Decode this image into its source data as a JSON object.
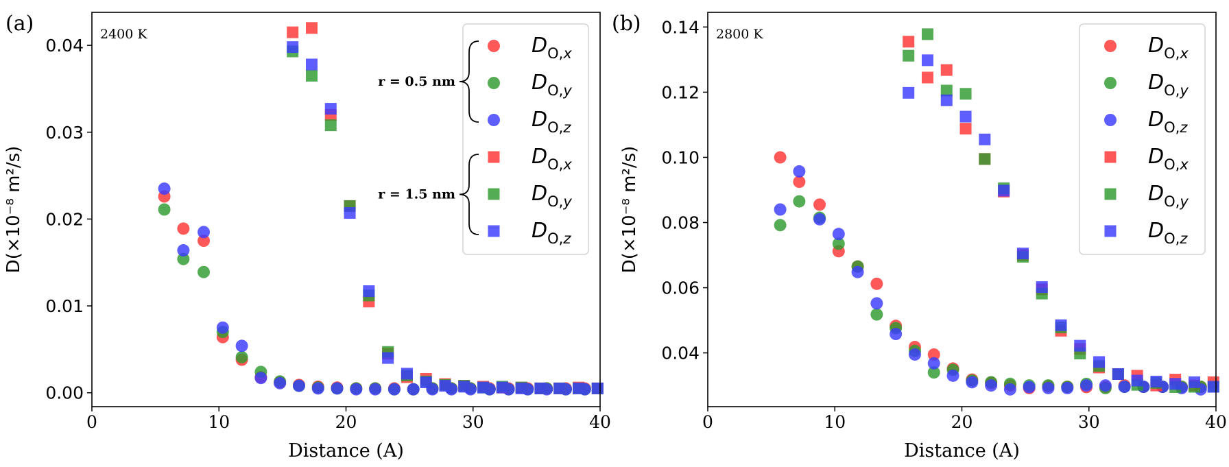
{
  "colors": {
    "x": "#ff3333",
    "y": "#2e9a2e",
    "z": "#3a3aff",
    "alpha": 0.82
  },
  "legend_bracket_labels": {
    "r_small": "r = 0.5 nm",
    "r_large": "r = 1.5 nm"
  },
  "chart_data": [
    {
      "type": "scatter",
      "panel_label": "(a)",
      "annotation": "2400 K",
      "xlabel": "Distance (A)",
      "ylabel": "D(×10⁻⁸ m²/s)",
      "xlim": [
        0,
        40
      ],
      "ylim": [
        -0.0016,
        0.0438
      ],
      "xticks": [
        0,
        10,
        20,
        30,
        40
      ],
      "yticks": [
        0.0,
        0.01,
        0.02,
        0.03,
        0.04
      ],
      "ytick_labels": [
        "0.00",
        "0.01",
        "0.02",
        "0.03",
        "0.04"
      ],
      "legend": {
        "entries": [
          {
            "marker": "circle",
            "axis": "x",
            "label": "D_O,x"
          },
          {
            "marker": "circle",
            "axis": "y",
            "label": "D_O,y"
          },
          {
            "marker": "circle",
            "axis": "z",
            "label": "D_O,z"
          },
          {
            "marker": "square",
            "axis": "x",
            "label": "D_O,x"
          },
          {
            "marker": "square",
            "axis": "y",
            "label": "D_O,y"
          },
          {
            "marker": "square",
            "axis": "z",
            "label": "D_O,z"
          }
        ]
      },
      "series": [
        {
          "name": "r = 0.5 nm, D_O,x",
          "marker": "circle",
          "axis": "x",
          "x": [
            5.7,
            7.2,
            8.8,
            10.3,
            11.8,
            13.3,
            14.8,
            16.3,
            17.8,
            19.3,
            20.8,
            22.3,
            23.8,
            25.3,
            26.8,
            28.3,
            29.8,
            31.3,
            32.8,
            34.3,
            35.8,
            37.3,
            38.8
          ],
          "y": [
            0.0226,
            0.0189,
            0.0175,
            0.0064,
            0.0038,
            0.0018,
            0.0012,
            0.0009,
            0.0007,
            0.0006,
            0.0005,
            0.0005,
            0.0005,
            0.0004,
            0.0005,
            0.0005,
            0.0005,
            0.0005,
            0.0005,
            0.0005,
            0.0005,
            0.0005,
            0.0005
          ]
        },
        {
          "name": "r = 0.5 nm, D_O,y",
          "marker": "circle",
          "axis": "y",
          "x": [
            5.7,
            7.2,
            8.8,
            10.3,
            11.8,
            13.3,
            14.8,
            16.3,
            17.8,
            19.3,
            20.8,
            22.3,
            23.8,
            25.3,
            26.8,
            28.3,
            29.8,
            31.3,
            32.8,
            34.3,
            35.8,
            37.3,
            38.8
          ],
          "y": [
            0.0211,
            0.0154,
            0.0139,
            0.007,
            0.0041,
            0.0024,
            0.0013,
            0.0008,
            0.0006,
            0.0005,
            0.0005,
            0.0005,
            0.0004,
            0.0004,
            0.0005,
            0.0005,
            0.0005,
            0.0004,
            0.0004,
            0.0004,
            0.0005,
            0.0004,
            0.0004
          ]
        },
        {
          "name": "r = 0.5 nm, D_O,z",
          "marker": "circle",
          "axis": "z",
          "x": [
            5.7,
            7.2,
            8.8,
            10.3,
            11.8,
            13.3,
            14.8,
            16.3,
            17.8,
            19.3,
            20.8,
            22.3,
            23.8,
            25.3,
            26.8,
            28.3,
            29.8,
            31.3,
            32.8,
            34.3,
            35.8,
            37.3,
            38.8
          ],
          "y": [
            0.0235,
            0.0164,
            0.0185,
            0.0075,
            0.0054,
            0.0017,
            0.0011,
            0.0008,
            0.0005,
            0.0005,
            0.0004,
            0.0004,
            0.0004,
            0.0004,
            0.0004,
            0.0004,
            0.0004,
            0.0004,
            0.0004,
            0.0004,
            0.0004,
            0.0004,
            0.0004
          ]
        },
        {
          "name": "r = 1.5 nm, D_O,x",
          "marker": "square",
          "axis": "x",
          "x": [
            15.8,
            17.3,
            18.8,
            20.3,
            21.8,
            23.3,
            24.8,
            26.3,
            27.8,
            29.3,
            30.8,
            32.3,
            33.8,
            35.3,
            36.8,
            38.3,
            39.8
          ],
          "y": [
            0.0415,
            0.042,
            0.032,
            0.0215,
            0.0105,
            0.0045,
            0.0018,
            0.0016,
            0.001,
            0.0008,
            0.0007,
            0.0006,
            0.0006,
            0.0005,
            0.0005,
            0.0006,
            0.0005
          ]
        },
        {
          "name": "r = 1.5 nm, D_O,y",
          "marker": "square",
          "axis": "y",
          "x": [
            15.8,
            17.3,
            18.8,
            20.3,
            21.8,
            23.3,
            24.8,
            26.3,
            27.8,
            29.3,
            30.8,
            32.3,
            33.8,
            35.3,
            36.8,
            38.3,
            39.8
          ],
          "y": [
            0.0393,
            0.0365,
            0.0308,
            0.0215,
            0.0112,
            0.0047,
            0.002,
            0.0013,
            0.0009,
            0.0008,
            0.0006,
            0.0007,
            0.0006,
            0.0005,
            0.0005,
            0.0005,
            0.0005
          ]
        },
        {
          "name": "r = 1.5 nm, D_O,z",
          "marker": "square",
          "axis": "z",
          "x": [
            15.8,
            17.3,
            18.8,
            20.3,
            21.8,
            23.3,
            24.8,
            26.3,
            27.8,
            29.3,
            30.8,
            32.3,
            33.8,
            35.3,
            36.8,
            38.3,
            39.8
          ],
          "y": [
            0.0398,
            0.0378,
            0.0327,
            0.0207,
            0.0117,
            0.004,
            0.0022,
            0.0012,
            0.0008,
            0.0007,
            0.0006,
            0.0006,
            0.0005,
            0.0005,
            0.0005,
            0.0005,
            0.0005
          ]
        }
      ]
    },
    {
      "type": "scatter",
      "panel_label": "(b)",
      "annotation": "2800 K",
      "xlabel": "Distance (A)",
      "ylabel": "D(×10⁻⁸ m²/s)",
      "xlim": [
        0,
        40
      ],
      "ylim": [
        0.0235,
        0.1445
      ],
      "xticks": [
        0,
        10,
        20,
        30,
        40
      ],
      "yticks": [
        0.04,
        0.06,
        0.08,
        0.1,
        0.12,
        0.14
      ],
      "ytick_labels": [
        "0.04",
        "0.06",
        "0.08",
        "0.10",
        "0.12",
        "0.14"
      ],
      "legend": {
        "entries": [
          {
            "marker": "circle",
            "axis": "x",
            "label": "D_O,x"
          },
          {
            "marker": "circle",
            "axis": "y",
            "label": "D_O,y"
          },
          {
            "marker": "circle",
            "axis": "z",
            "label": "D_O,z"
          },
          {
            "marker": "square",
            "axis": "x",
            "label": "D_O,x"
          },
          {
            "marker": "square",
            "axis": "y",
            "label": "D_O,y"
          },
          {
            "marker": "square",
            "axis": "z",
            "label": "D_O,z"
          }
        ]
      },
      "series": [
        {
          "name": "r = 0.5 nm, D_O,x",
          "marker": "circle",
          "axis": "x",
          "x": [
            5.7,
            7.2,
            8.8,
            10.3,
            11.8,
            13.3,
            14.8,
            16.3,
            17.8,
            19.3,
            20.8,
            22.3,
            23.8,
            25.3,
            26.8,
            28.3,
            29.8,
            31.3,
            32.8,
            34.3,
            35.8,
            37.3,
            38.8
          ],
          "y": [
            0.1,
            0.0925,
            0.0855,
            0.0712,
            0.0665,
            0.0612,
            0.0483,
            0.0418,
            0.0395,
            0.0352,
            0.0318,
            0.0308,
            0.03,
            0.0292,
            0.0298,
            0.0296,
            0.0295,
            0.0295,
            0.03,
            0.0296,
            0.0296,
            0.0296,
            0.0296
          ]
        },
        {
          "name": "r = 0.5 nm, D_O,y",
          "marker": "circle",
          "axis": "y",
          "x": [
            5.7,
            7.2,
            8.8,
            10.3,
            11.8,
            13.3,
            14.8,
            16.3,
            17.8,
            19.3,
            20.8,
            22.3,
            23.8,
            25.3,
            26.8,
            28.3,
            29.8,
            31.3,
            32.8,
            34.3,
            35.8,
            37.3,
            38.8
          ],
          "y": [
            0.0792,
            0.0865,
            0.0815,
            0.0735,
            0.0665,
            0.0518,
            0.0476,
            0.0406,
            0.034,
            0.0348,
            0.0315,
            0.031,
            0.0305,
            0.03,
            0.03,
            0.0296,
            0.0305,
            0.0292,
            0.0296,
            0.0296,
            0.0296,
            0.0296,
            0.0296
          ]
        },
        {
          "name": "r = 0.5 nm, D_O,z",
          "marker": "circle",
          "axis": "z",
          "x": [
            5.7,
            7.2,
            8.8,
            10.3,
            11.8,
            13.3,
            14.8,
            16.3,
            17.8,
            19.3,
            20.8,
            22.3,
            23.8,
            25.3,
            26.8,
            28.3,
            29.8,
            31.3,
            32.8,
            34.3,
            35.8,
            37.3,
            38.8
          ],
          "y": [
            0.084,
            0.0957,
            0.081,
            0.0765,
            0.0648,
            0.0552,
            0.0458,
            0.0395,
            0.0368,
            0.033,
            0.031,
            0.03,
            0.0288,
            0.0295,
            0.0292,
            0.0292,
            0.03,
            0.03,
            0.0296,
            0.0296,
            0.0296,
            0.0292,
            0.0288
          ]
        },
        {
          "name": "r = 1.5 nm, D_O,x",
          "marker": "square",
          "axis": "x",
          "x": [
            15.8,
            17.3,
            18.8,
            20.3,
            21.8,
            23.3,
            24.8,
            26.3,
            27.8,
            29.3,
            30.8,
            32.3,
            33.8,
            35.3,
            36.8,
            38.3,
            39.8
          ],
          "y": [
            0.1355,
            0.1245,
            0.1268,
            0.1088,
            0.0995,
            0.0895,
            0.07,
            0.0595,
            0.0468,
            0.0412,
            0.0355,
            0.0335,
            0.033,
            0.03,
            0.0318,
            0.03,
            0.031
          ]
        },
        {
          "name": "r = 1.5 nm, D_O,y",
          "marker": "square",
          "axis": "y",
          "x": [
            15.8,
            17.3,
            18.8,
            20.3,
            21.8,
            23.3,
            24.8,
            26.3,
            27.8,
            29.3,
            30.8,
            32.3,
            33.8,
            35.3,
            36.8,
            38.3,
            39.8
          ],
          "y": [
            0.1312,
            0.1378,
            0.1205,
            0.1195,
            0.0995,
            0.0905,
            0.0695,
            0.0582,
            0.0478,
            0.0398,
            0.036,
            0.0335,
            0.0302,
            0.0308,
            0.0295,
            0.0296,
            0.0296
          ]
        },
        {
          "name": "r = 1.5 nm, D_O,z",
          "marker": "square",
          "axis": "z",
          "x": [
            15.8,
            17.3,
            18.8,
            20.3,
            21.8,
            23.3,
            24.8,
            26.3,
            27.8,
            29.3,
            30.8,
            32.3,
            33.8,
            35.3,
            36.8,
            38.3,
            39.8
          ],
          "y": [
            0.1198,
            0.1298,
            0.1175,
            0.1125,
            0.1055,
            0.0898,
            0.0705,
            0.0602,
            0.0485,
            0.0422,
            0.0372,
            0.0335,
            0.0315,
            0.0312,
            0.0305,
            0.031,
            0.0296
          ]
        }
      ]
    }
  ]
}
